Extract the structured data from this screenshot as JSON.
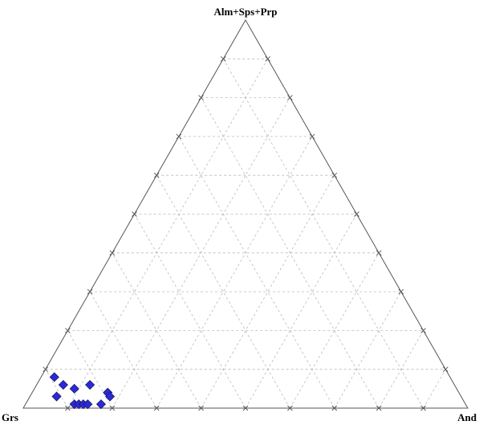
{
  "chart_data": {
    "type": "scatter",
    "subtype": "ternary",
    "vertices": {
      "top": "Alm+Sps+Prp",
      "left": "Grs",
      "right": "And"
    },
    "grid": true,
    "grid_step": 0.1,
    "marker": "diamond",
    "marker_color": "#2a2ad8",
    "points": [
      {
        "top": 0.08,
        "right": 0.03
      },
      {
        "top": 0.06,
        "right": 0.06
      },
      {
        "top": 0.05,
        "right": 0.09
      },
      {
        "top": 0.06,
        "right": 0.12
      },
      {
        "top": 0.03,
        "right": 0.06
      },
      {
        "top": 0.04,
        "right": 0.17
      },
      {
        "top": 0.03,
        "right": 0.18
      },
      {
        "top": 0.01,
        "right": 0.11
      },
      {
        "top": 0.01,
        "right": 0.12
      },
      {
        "top": 0.01,
        "right": 0.13
      },
      {
        "top": 0.01,
        "right": 0.14
      },
      {
        "top": 0.01,
        "right": 0.17
      }
    ]
  }
}
